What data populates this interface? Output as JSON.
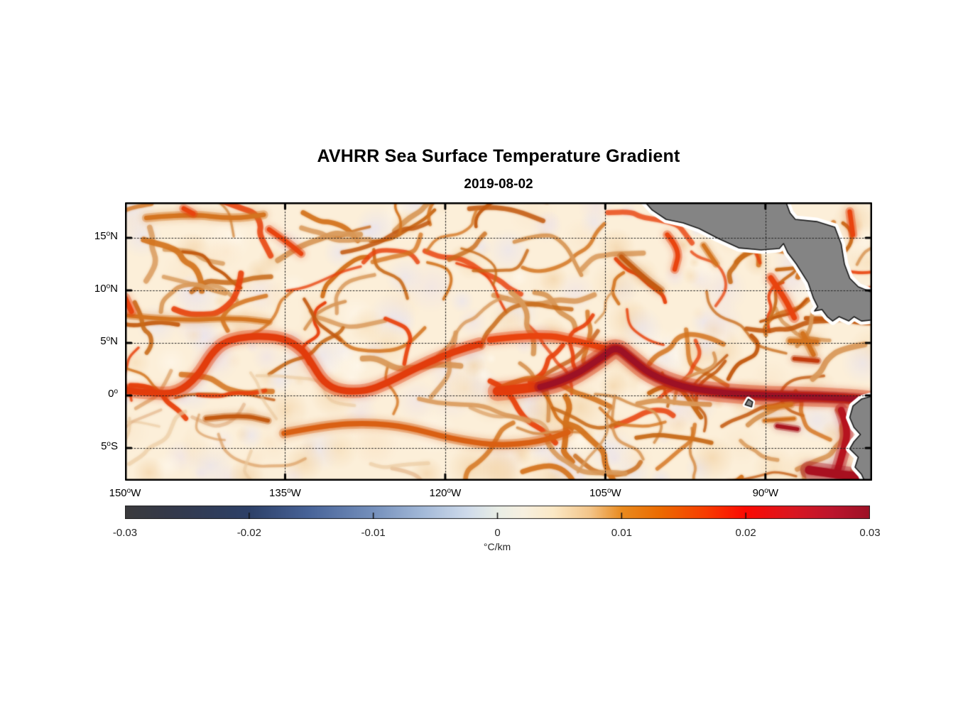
{
  "figure": {
    "title": "AVHRR Sea Surface Temperature Gradient",
    "date": "2019-08-02"
  },
  "axes": {
    "lon_ticks": [
      {
        "value": 150,
        "text": "150",
        "hemi": "W"
      },
      {
        "value": 135,
        "text": "135",
        "hemi": "W"
      },
      {
        "value": 120,
        "text": "120",
        "hemi": "W"
      },
      {
        "value": 105,
        "text": "105",
        "hemi": "W"
      },
      {
        "value": 90,
        "text": "90",
        "hemi": "W"
      }
    ],
    "lat_ticks": [
      {
        "value": 15,
        "text": "15",
        "hemi": "N"
      },
      {
        "value": 10,
        "text": "10",
        "hemi": "N"
      },
      {
        "value": 5,
        "text": "5",
        "hemi": "N"
      },
      {
        "value": 0,
        "text": "0",
        "hemi": ""
      },
      {
        "value": -5,
        "text": "5",
        "hemi": "S"
      }
    ],
    "lon_range_deg_west": [
      150,
      80
    ],
    "lat_range_deg_north": [
      18.38,
      -8.11
    ],
    "grid_style": "dotted"
  },
  "colorbar": {
    "unit": "°C/km",
    "min": -0.03,
    "max": 0.03,
    "tick_labels": [
      "-0.03",
      "-0.02",
      "-0.01",
      "0",
      "0.01",
      "0.02",
      "0.03"
    ],
    "tick_values": [
      -0.03,
      -0.02,
      -0.01,
      0,
      0.01,
      0.02,
      0.03
    ],
    "stops": [
      [
        0.0,
        "#3b3b3d"
      ],
      [
        0.06,
        "#34394a"
      ],
      [
        0.167,
        "#2d4068"
      ],
      [
        0.25,
        "#49659a"
      ],
      [
        0.333,
        "#7590bc"
      ],
      [
        0.4,
        "#a3b9d8"
      ],
      [
        0.46,
        "#cfdbeb"
      ],
      [
        0.5,
        "#e9eee6"
      ],
      [
        0.535,
        "#f7f0e0"
      ],
      [
        0.575,
        "#fbe9c6"
      ],
      [
        0.625,
        "#f3c488"
      ],
      [
        0.667,
        "#e98a1e"
      ],
      [
        0.72,
        "#ec6a00"
      ],
      [
        0.78,
        "#f83c00"
      ],
      [
        0.833,
        "#fb0a03"
      ],
      [
        0.9,
        "#d81722"
      ],
      [
        0.95,
        "#bc152d"
      ],
      [
        1.0,
        "#9d1126"
      ]
    ]
  },
  "map": {
    "seed": 7,
    "ocean_base": "#fcefd9",
    "land_color": "#848484",
    "coast_color": "#1a1a1a",
    "fringe_color": "#ffffff",
    "grid_color": "#1f1f1f",
    "mottle_colors": [
      "#f7ddb6",
      "#fff8ec",
      "#f3d3a6",
      "#efe3e6",
      "#fbe7cb",
      "#e9e4ee"
    ],
    "worm_palette": [
      "#d9995a",
      "#d4741f",
      "#c35a10",
      "#d4741f",
      "#e8430e",
      "#d9995a",
      "#c86a18"
    ],
    "worm_palette_faint": [
      "#ecc9a0",
      "#e2b285",
      "#d9995a"
    ],
    "zones": [
      {
        "name": "north-activity",
        "lonW": [
          150,
          80
        ],
        "lat": [
          5.5,
          18.3
        ],
        "count": 78,
        "faint": false
      },
      {
        "name": "front-band",
        "lonW": [
          150,
          80
        ],
        "lat": [
          -0.5,
          5.5
        ],
        "count": 30,
        "faint": false
      },
      {
        "name": "south-west-quiet",
        "lonW": [
          150,
          117
        ],
        "lat": [
          -8.0,
          -0.5
        ],
        "count": 14,
        "faint": true
      },
      {
        "name": "south-east",
        "lonW": [
          117,
          80
        ],
        "lat": [
          -8.0,
          -0.5
        ],
        "count": 30,
        "faint": false
      }
    ],
    "features": [
      {
        "name": "top-left-band",
        "color": "#d4741f",
        "width": 6,
        "points": [
          [
            148,
            16.9
          ],
          [
            144,
            17.3
          ],
          [
            140,
            16.8
          ],
          [
            137,
            17.2
          ]
        ]
      },
      {
        "name": "top-red-spot",
        "color": "#e8430e",
        "width": 6,
        "points": [
          [
            144.5,
            17.8
          ],
          [
            143.6,
            17.3
          ]
        ]
      },
      {
        "name": "arc-15n-west",
        "color": "#e8430e",
        "width": 6,
        "points": [
          [
            136.5,
            15.8
          ],
          [
            134.8,
            14.6
          ],
          [
            133.5,
            13.5
          ]
        ]
      },
      {
        "name": "necc-band-west",
        "color": "#d4741f",
        "width": 5,
        "points": [
          [
            149.7,
            7.6
          ],
          [
            145.1,
            7.1
          ],
          [
            139.8,
            7.4
          ],
          [
            136.5,
            7.0
          ]
        ]
      },
      {
        "name": "west-edge-streak",
        "color": "#e8430e",
        "width": 7,
        "points": [
          [
            150,
            9.3
          ],
          [
            149.4,
            8.0
          ]
        ]
      },
      {
        "name": "equatorial-front-west",
        "color": "#e23c0c",
        "width": 9,
        "points": [
          [
            150,
            0.5
          ],
          [
            147.4,
            0.2
          ],
          [
            145.1,
            0.2
          ],
          [
            143.2,
            1.8
          ],
          [
            141.9,
            4.0
          ],
          [
            140.6,
            5.2
          ],
          [
            138.1,
            5.7
          ],
          [
            135.1,
            5.5
          ],
          [
            133.4,
            4.4
          ],
          [
            132.6,
            3.2
          ],
          [
            131.4,
            1.2
          ],
          [
            129.8,
            0.4
          ],
          [
            127.4,
            0.4
          ],
          [
            125.4,
            1.2
          ],
          [
            123.5,
            2.2
          ],
          [
            121.5,
            3.2
          ],
          [
            119.1,
            4.2
          ],
          [
            116.8,
            4.9
          ]
        ]
      },
      {
        "name": "five-n-front-east",
        "color": "#e8430e",
        "width": 8,
        "points": [
          [
            115.8,
            5.3
          ],
          [
            111.1,
            5.9
          ],
          [
            107.2,
            5.1
          ],
          [
            104.5,
            4.3
          ]
        ]
      },
      {
        "name": "equatorial-front-east-sheath",
        "color": "#e23c0c",
        "width": 13,
        "points": [
          [
            115.1,
            0.4
          ],
          [
            111.1,
            0.8
          ],
          [
            108.5,
            1.5
          ],
          [
            105.2,
            3.7
          ],
          [
            104.0,
            4.7
          ],
          [
            102.6,
            3.5
          ],
          [
            100.8,
            2.0
          ],
          [
            97.8,
            0.8
          ],
          [
            94.5,
            0.3
          ],
          [
            90.5,
            0.0
          ],
          [
            85.9,
            -0.1
          ],
          [
            81.9,
            -0.3
          ],
          [
            80.1,
            -0.5
          ]
        ]
      },
      {
        "name": "equatorial-front-east-core",
        "color": "#9c1126",
        "width": 8,
        "points": [
          [
            111.1,
            0.8
          ],
          [
            108.5,
            1.5
          ],
          [
            105.2,
            3.7
          ],
          [
            104.0,
            4.7
          ],
          [
            102.6,
            3.5
          ],
          [
            100.8,
            2.0
          ],
          [
            97.8,
            0.8
          ],
          [
            94.5,
            0.3
          ],
          [
            90.5,
            0.0
          ],
          [
            85.9,
            -0.1
          ],
          [
            81.9,
            -0.3
          ],
          [
            80.1,
            -0.5
          ]
        ]
      },
      {
        "name": "south-arc",
        "color": "#d95f12",
        "width": 7,
        "points": [
          [
            135.1,
            -3.6
          ],
          [
            131.1,
            -2.8
          ],
          [
            127.1,
            -2.6
          ],
          [
            123.5,
            -3.0
          ],
          [
            119.5,
            -4.1
          ],
          [
            115.1,
            -4.8
          ],
          [
            111.1,
            -4.4
          ],
          [
            108.5,
            -3.5
          ]
        ]
      },
      {
        "name": "south-arc-2",
        "color": "#c35a10",
        "width": 5,
        "points": [
          [
            142.4,
            -2.2
          ],
          [
            139.2,
            -1.8
          ],
          [
            136.6,
            -2.4
          ]
        ]
      },
      {
        "name": "peru-coastal-front",
        "color": "#b5121e",
        "width": 9,
        "points": [
          [
            82.9,
            -1.4
          ],
          [
            82.2,
            -3.2
          ],
          [
            82.7,
            -5.3
          ],
          [
            83.3,
            -7.3
          ]
        ]
      },
      {
        "name": "corner-dark-front",
        "color": "#a8101f",
        "width": 12,
        "points": [
          [
            85.9,
            -7.1
          ],
          [
            82.6,
            -7.6
          ],
          [
            80.1,
            -7.8
          ]
        ]
      },
      {
        "name": "tehuantepec-front",
        "color": "#e8430e",
        "width": 6,
        "points": [
          [
            99.2,
            15.3
          ],
          [
            98.0,
            13.9
          ],
          [
            98.5,
            12.0
          ]
        ]
      },
      {
        "name": "tehuantepec-front-2",
        "color": "#d4741f",
        "width": 5,
        "points": [
          [
            95.8,
            14.3
          ],
          [
            94.6,
            12.5
          ]
        ]
      },
      {
        "name": "ridge-13n",
        "color": "#c35a10",
        "width": 6,
        "points": [
          [
            103.5,
            13.2
          ],
          [
            101.5,
            11.3
          ],
          [
            99.8,
            10.0
          ]
        ]
      },
      {
        "name": "papagayo-front",
        "color": "#e8430e",
        "width": 7,
        "points": [
          [
            89.5,
            11.2
          ],
          [
            88.2,
            9.3
          ],
          [
            87.3,
            7.4
          ]
        ]
      },
      {
        "name": "papagayo-front-2",
        "color": "#d4741f",
        "width": 6,
        "points": [
          [
            86.5,
            5.9
          ],
          [
            85.5,
            3.9
          ]
        ]
      },
      {
        "name": "caribbean-streak",
        "color": "#e8430e",
        "width": 6,
        "points": [
          [
            82.1,
            17.5
          ],
          [
            81.8,
            15.3
          ]
        ]
      },
      {
        "name": "galapagos-wake-1",
        "color": "#d4741f",
        "width": 5,
        "points": [
          [
            89.9,
            -1.2
          ],
          [
            87.6,
            -0.9
          ]
        ]
      },
      {
        "name": "galapagos-wake-2",
        "color": "#d4741f",
        "width": 4,
        "points": [
          [
            90.1,
            -2.4
          ],
          [
            87.3,
            -2.2
          ]
        ]
      },
      {
        "name": "galapagos-wake-dark",
        "color": "#a8161f",
        "width": 5,
        "points": [
          [
            88.9,
            -2.9
          ],
          [
            87.0,
            -3.2
          ]
        ]
      },
      {
        "name": "wake-box-1",
        "color": "#d4741f",
        "width": 6,
        "points": [
          [
            87.7,
            5.2
          ],
          [
            85.2,
            5.1
          ]
        ]
      },
      {
        "name": "wake-box-2",
        "color": "#c23a0c",
        "width": 5,
        "points": [
          [
            87.3,
            3.5
          ],
          [
            85.1,
            3.3
          ]
        ]
      }
    ],
    "lands": [
      {
        "name": "central-america-isthmus",
        "points": [
          [
            101.8,
            19.0
          ],
          [
            100.6,
            17.64
          ],
          [
            99.3,
            16.76
          ],
          [
            97.7,
            16.42
          ],
          [
            96.2,
            15.88
          ],
          [
            94.4,
            14.93
          ],
          [
            92.5,
            14.05
          ],
          [
            90.4,
            13.85
          ],
          [
            88.7,
            13.99
          ],
          [
            88.3,
            14.46
          ],
          [
            87.9,
            13.58
          ],
          [
            87.1,
            12.5
          ],
          [
            86.0,
            10.74
          ],
          [
            85.5,
            9.26
          ],
          [
            85.1,
            8.45
          ],
          [
            85.4,
            8.04
          ],
          [
            84.7,
            8.18
          ],
          [
            84.2,
            7.5
          ],
          [
            83.7,
            7.09
          ],
          [
            83.1,
            7.5
          ],
          [
            82.2,
            7.09
          ],
          [
            81.7,
            7.5
          ],
          [
            81.0,
            7.09
          ],
          [
            79.5,
            7.23
          ],
          [
            79.5,
            9.59
          ],
          [
            81.3,
            10.34
          ],
          [
            82.1,
            11.15
          ],
          [
            82.6,
            12.5
          ],
          [
            82.9,
            14.39
          ],
          [
            83.5,
            16.01
          ],
          [
            85.2,
            16.55
          ],
          [
            87.2,
            16.76
          ],
          [
            87.7,
            17.36
          ],
          [
            88.3,
            19.0
          ]
        ]
      },
      {
        "name": "south-america-coast",
        "points": [
          [
            79.5,
            0.07
          ],
          [
            81.0,
            -0.34
          ],
          [
            81.8,
            -1.01
          ],
          [
            82.1,
            -2.09
          ],
          [
            81.7,
            -3.04
          ],
          [
            81.1,
            -3.72
          ],
          [
            81.7,
            -4.39
          ],
          [
            82.1,
            -5.07
          ],
          [
            81.3,
            -5.88
          ],
          [
            81.6,
            -6.82
          ],
          [
            81.0,
            -7.5
          ],
          [
            80.5,
            -8.6
          ],
          [
            79.5,
            -8.6
          ]
        ]
      },
      {
        "name": "galapagos-islands",
        "points": [
          [
            91.6,
            -0.34
          ],
          [
            91.2,
            -0.61
          ],
          [
            91.3,
            -1.08
          ],
          [
            91.9,
            -0.88
          ]
        ]
      }
    ]
  },
  "chart_data": {
    "type": "heatmap",
    "title": "AVHRR Sea Surface Temperature Gradient",
    "subtitle": "2019-08-02",
    "xlabel": "",
    "ylabel": "",
    "x_ticks": [
      "150°W",
      "135°W",
      "120°W",
      "105°W",
      "90°W"
    ],
    "y_ticks": [
      "15°N",
      "10°N",
      "5°N",
      "0°",
      "5°S"
    ],
    "lon_range_deg_west": [
      150,
      80
    ],
    "lat_range_deg_north": [
      18.4,
      -8.1
    ],
    "grid": "dotted black, drawn over data and land",
    "colorbar": {
      "orientation": "horizontal",
      "position": "below map",
      "min": -0.03,
      "max": 0.03,
      "ticks": [
        -0.03,
        -0.02,
        -0.01,
        0,
        0.01,
        0.02,
        0.03
      ],
      "unit": "°C/km",
      "colormap": "diverging: dark gray-navy / blue / pale blue-white at 0 / cream / orange / red / dark maroon"
    },
    "value_description": "Sea-surface temperature gradient magnitude. Ocean background ~0-0.005 °C/km (cream) mottled with orange filaments ~0.01 °C/km; strong red-to-maroon frontal bands ~0.02-0.03 °C/km along the equatorial front (0-5°N) with tropical-instability-wave cusps, intensifying east of 110°W toward the South American coast; coastal fronts off Tehuantepec, Papagayo and Peru.",
    "land_regions": [
      "Central America isthmus (southern Mexico to Panama), gray with black coastline and white coastal data-gap fringe, upper right",
      "South America west coast (Ecuador/Peru), right edge",
      "Galápagos Islands near 91°W, 0.5°S"
    ]
  }
}
